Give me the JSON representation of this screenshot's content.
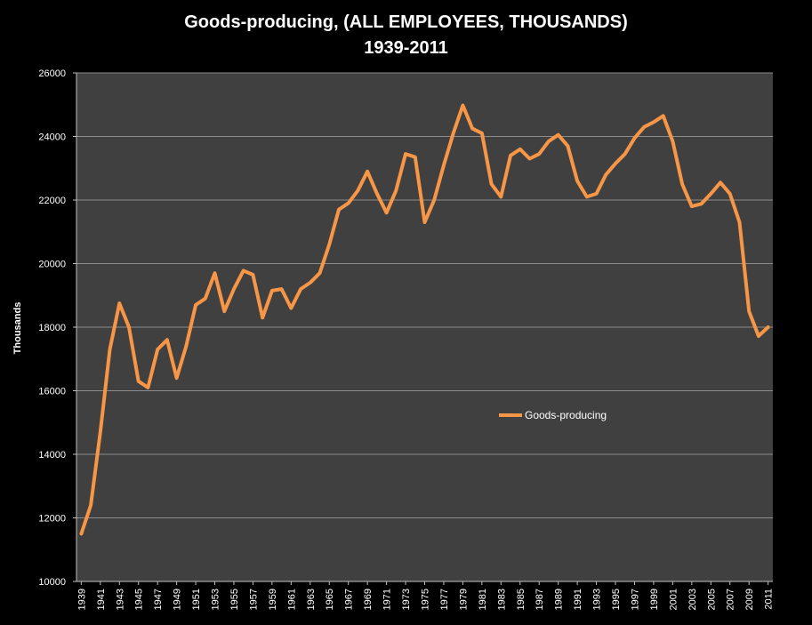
{
  "chart_data": {
    "type": "line",
    "title": "Goods-producing, (ALL EMPLOYEES, THOUSANDS)",
    "subtitle": "1939-2011",
    "ylabel": "Thousands",
    "xlabel": "",
    "ylim": [
      10000,
      26000
    ],
    "yticks": [
      10000,
      12000,
      14000,
      16000,
      18000,
      20000,
      22000,
      24000,
      26000
    ],
    "xticks": [
      "1939",
      "1941",
      "1943",
      "1945",
      "1947",
      "1949",
      "1951",
      "1953",
      "1955",
      "1957",
      "1959",
      "1961",
      "1963",
      "1965",
      "1967",
      "1969",
      "1971",
      "1973",
      "1975",
      "1977",
      "1979",
      "1981",
      "1983",
      "1985",
      "1987",
      "1989",
      "1991",
      "1993",
      "1995",
      "1997",
      "1999",
      "2001",
      "2003",
      "2005",
      "2007",
      "2009",
      "2011"
    ],
    "grid": true,
    "legend_position": "center-right",
    "colors": {
      "line": "#F79646",
      "plot_bg": "#404040",
      "background": "#000000",
      "grid": "#8c8c8c"
    },
    "series": [
      {
        "name": "Goods-producing",
        "x": [
          1939,
          1940,
          1941,
          1942,
          1943,
          1944,
          1945,
          1946,
          1947,
          1948,
          1949,
          1950,
          1951,
          1952,
          1953,
          1954,
          1955,
          1956,
          1957,
          1958,
          1959,
          1960,
          1961,
          1962,
          1963,
          1964,
          1965,
          1966,
          1967,
          1968,
          1969,
          1970,
          1971,
          1972,
          1973,
          1974,
          1975,
          1976,
          1977,
          1978,
          1979,
          1980,
          1981,
          1982,
          1983,
          1984,
          1985,
          1986,
          1987,
          1988,
          1989,
          1990,
          1991,
          1992,
          1993,
          1994,
          1995,
          1996,
          1997,
          1998,
          1999,
          2000,
          2001,
          2002,
          2003,
          2004,
          2005,
          2006,
          2007,
          2008,
          2009,
          2010,
          2011
        ],
        "values": [
          11500,
          12400,
          14700,
          17300,
          18750,
          18000,
          16300,
          16100,
          17300,
          17600,
          16400,
          17400,
          18700,
          18900,
          19700,
          18500,
          19200,
          19780,
          19650,
          18300,
          19150,
          19200,
          18600,
          19200,
          19400,
          19700,
          20600,
          21700,
          21900,
          22300,
          22900,
          22200,
          21600,
          22300,
          23450,
          23350,
          21300,
          22000,
          23100,
          24100,
          24980,
          24250,
          24100,
          22500,
          22100,
          23400,
          23600,
          23300,
          23450,
          23850,
          24050,
          23700,
          22600,
          22100,
          22200,
          22800,
          23150,
          23450,
          23950,
          24300,
          24450,
          24650,
          23850,
          22500,
          21800,
          21880,
          22200,
          22550,
          22200,
          21300,
          18500,
          17720,
          18000
        ]
      }
    ]
  }
}
